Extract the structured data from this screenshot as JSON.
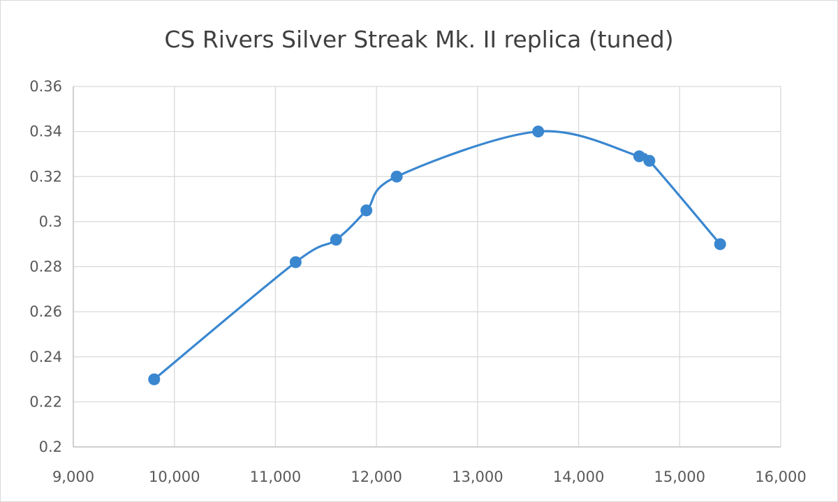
{
  "chart_data": {
    "type": "scatter",
    "title": "CS Rivers Silver Streak Mk. II replica (tuned)",
    "xlabel": "",
    "ylabel": "",
    "xlim": [
      9000,
      16000
    ],
    "ylim": [
      0.2,
      0.36
    ],
    "x_ticks": [
      9000,
      10000,
      11000,
      12000,
      13000,
      14000,
      15000,
      16000
    ],
    "x_tick_labels": [
      "9,000",
      "10,000",
      "11,000",
      "12,000",
      "13,000",
      "14,000",
      "15,000",
      "16,000"
    ],
    "y_ticks": [
      0.2,
      0.22,
      0.24,
      0.26,
      0.28,
      0.3,
      0.32,
      0.34,
      0.36
    ],
    "y_tick_labels": [
      "0.2",
      "0.22",
      "0.24",
      "0.26",
      "0.28",
      "0.3",
      "0.32",
      "0.34",
      "0.36"
    ],
    "grid": true,
    "smooth_line": true,
    "series": [
      {
        "color": "#3a87d0",
        "points": [
          {
            "x": 9800,
            "y": 0.23
          },
          {
            "x": 11200,
            "y": 0.282
          },
          {
            "x": 11600,
            "y": 0.292
          },
          {
            "x": 11900,
            "y": 0.305
          },
          {
            "x": 12200,
            "y": 0.32
          },
          {
            "x": 13600,
            "y": 0.34
          },
          {
            "x": 14600,
            "y": 0.329
          },
          {
            "x": 14700,
            "y": 0.327
          },
          {
            "x": 15400,
            "y": 0.29
          }
        ]
      }
    ]
  }
}
